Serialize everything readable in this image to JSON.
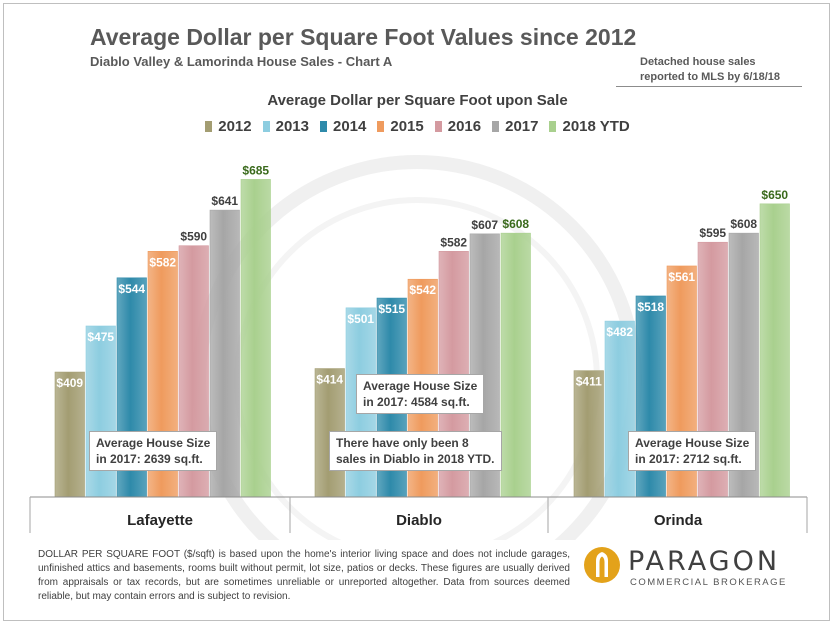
{
  "header": {
    "title": "Average Dollar per Square Foot Values since 2012",
    "subtitle": "Diablo Valley & Lamorinda House Sales - Chart A",
    "note_line1": "Detached house sales",
    "note_line2": "reported to MLS by 6/18/18"
  },
  "chart_data": {
    "type": "bar",
    "title": "Average Dollar per Square Foot upon Sale",
    "categories": [
      "Lafayette",
      "Diablo",
      "Orinda"
    ],
    "series": [
      {
        "name": "2012",
        "values": [
          409,
          414,
          411
        ]
      },
      {
        "name": "2013",
        "values": [
          475,
          501,
          482
        ]
      },
      {
        "name": "2014",
        "values": [
          544,
          515,
          518
        ]
      },
      {
        "name": "2015",
        "values": [
          582,
          542,
          561
        ]
      },
      {
        "name": "2016",
        "values": [
          590,
          582,
          595
        ]
      },
      {
        "name": "2017",
        "values": [
          641,
          607,
          608
        ]
      },
      {
        "name": "2018 YTD",
        "values": [
          685,
          608,
          650
        ]
      }
    ],
    "value_prefix": "$",
    "ylim": [
      230,
      730
    ],
    "grid": false,
    "legend_position": "top",
    "series_colors": [
      "#a39d72",
      "#8dcde0",
      "#2e8aaa",
      "#ef9b5e",
      "#d49aa0",
      "#a6a6a6",
      "#a9d08e"
    ],
    "label_colors": [
      "#ffffff",
      "#ffffff",
      "#ffffff",
      "#ffffff",
      "#404040",
      "#404040",
      "#3a6a1c"
    ]
  },
  "annotations": [
    {
      "line1": "Average House Size",
      "line2": "in 2017: 2639 sq.ft."
    },
    {
      "line1": "Average House Size",
      "line2": "in 2017: 4584 sq.ft."
    },
    {
      "line1": "There have only been 8",
      "line2": "sales in Diablo in 2018 YTD."
    },
    {
      "line1": "Average House Size",
      "line2": "in 2017: 2712 sq.ft."
    }
  ],
  "footnote": "DOLLAR PER SQUARE FOOT ($/sqft) is based upon the home's interior living space and does not include garages, unfinished attics and basements, rooms built without permit, lot size, patios or decks. These figures are usually derived from appraisals or tax records, but are sometimes unreliable or unreported altogether. Data from sources deemed reliable, but may contain errors and is subject to revision.",
  "logo": {
    "name": "PARAGON",
    "tagline": "COMMERCIAL BROKERAGE",
    "mark_color": "#e3a21a"
  }
}
